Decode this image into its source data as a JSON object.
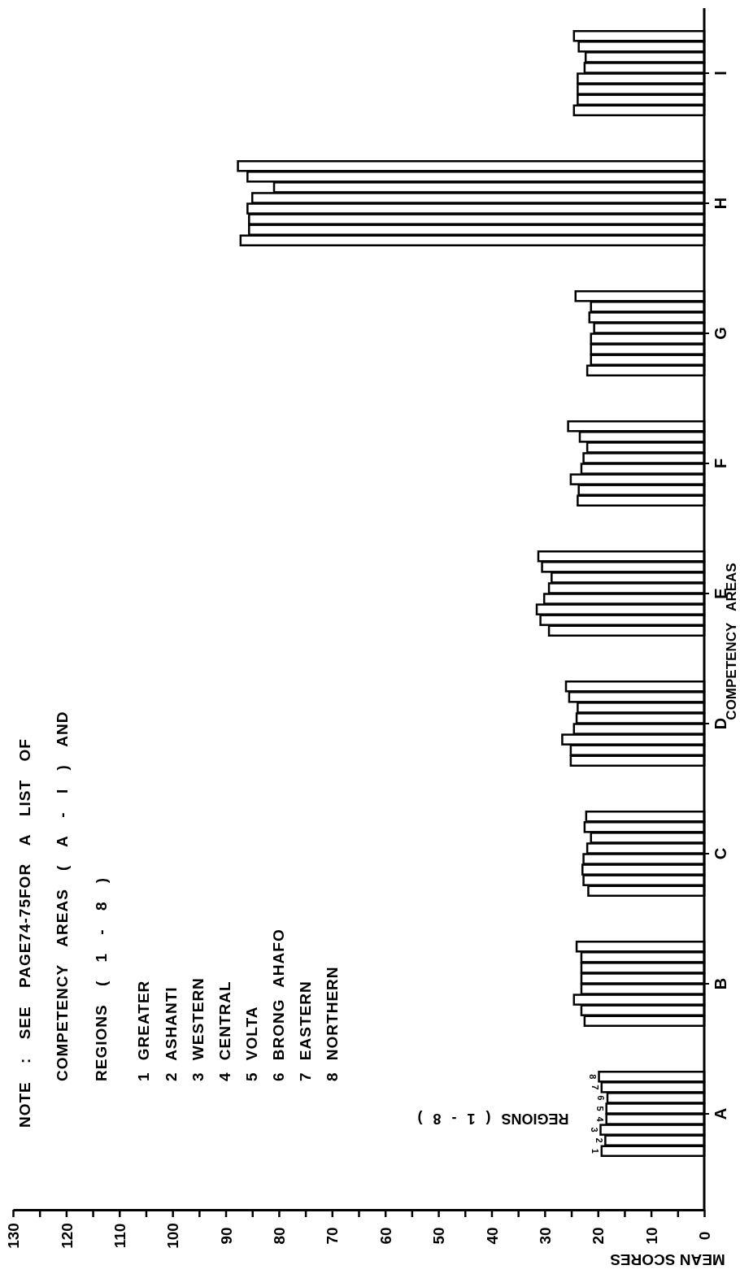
{
  "chart_data": {
    "type": "bar",
    "xlabel": "MEAN SCORES",
    "ylabel": "COMPETENCY AREAS",
    "legend_title": "REGIONS ( 1 - 8 )",
    "orientation": "horizontal",
    "categories": [
      "I",
      "H",
      "G",
      "F",
      "E",
      "D",
      "C",
      "B",
      "A"
    ],
    "series": [
      {
        "name": "8",
        "color": "#ffffff",
        "values": [
          24.5,
          87.7,
          24.2,
          25.6,
          31.2,
          26.0,
          22.2,
          24.0,
          19.8
        ]
      },
      {
        "name": "7",
        "color": "#ffffff",
        "values": [
          23.6,
          85.9,
          21.3,
          23.4,
          30.5,
          25.4,
          22.5,
          23.1,
          19.3
        ]
      },
      {
        "name": "6",
        "color": "#ffffff",
        "values": [
          22.3,
          80.9,
          21.6,
          22.0,
          28.7,
          23.8,
          21.3,
          23.1,
          18.2
        ]
      },
      {
        "name": "5",
        "color": "#ffffff",
        "values": [
          22.5,
          85.0,
          20.7,
          22.7,
          29.2,
          24.0,
          22.0,
          23.1,
          18.4
        ]
      },
      {
        "name": "4",
        "color": "#ffffff",
        "values": [
          23.8,
          85.9,
          21.3,
          23.1,
          30.1,
          24.5,
          22.7,
          23.1,
          18.4
        ]
      },
      {
        "name": "3",
        "color": "#ffffff",
        "values": [
          23.8,
          85.6,
          21.3,
          25.1,
          31.5,
          26.7,
          22.9,
          24.5,
          19.5
        ]
      },
      {
        "name": "2",
        "color": "#ffffff",
        "values": [
          23.8,
          85.6,
          21.3,
          23.6,
          30.8,
          25.1,
          22.7,
          23.1,
          18.6
        ]
      },
      {
        "name": "1",
        "color": "#ffffff",
        "values": [
          24.5,
          87.2,
          22.0,
          23.8,
          29.2,
          25.1,
          21.8,
          22.5,
          19.3
        ]
      }
    ],
    "xlim": [
      130,
      0
    ],
    "xticks": [
      0,
      {
        "value": 5,
        "label": null
      },
      10,
      {
        "value": 15,
        "label": null
      },
      20,
      {
        "value": 25,
        "label": null
      },
      30,
      {
        "value": 35,
        "label": null
      },
      40,
      {
        "value": 45,
        "label": null
      },
      50,
      {
        "value": 55,
        "label": null
      },
      60,
      {
        "value": 65,
        "label": null
      },
      70,
      {
        "value": 75,
        "label": null
      },
      80,
      {
        "value": 85,
        "label": null
      },
      90,
      {
        "value": 95,
        "label": null
      },
      100,
      {
        "value": 105,
        "label": null
      },
      110,
      {
        "value": 115,
        "label": null
      },
      120,
      {
        "value": 125,
        "label": null
      },
      130
    ],
    "annotations": [
      "NOTE : SEE PAGE74-75FOR A LIST OF",
      "COMPETENCY AREAS ( A - I ) AND",
      "REGIONS ( 1 - 8 )",
      "1 GREATER",
      "2 ASHANTI",
      "3 WESTERN",
      "4 CENTRAL",
      "5 VOLTA",
      "6 BRONG AHAFO",
      "7 EASTERN",
      "8 NORTHERN"
    ]
  }
}
